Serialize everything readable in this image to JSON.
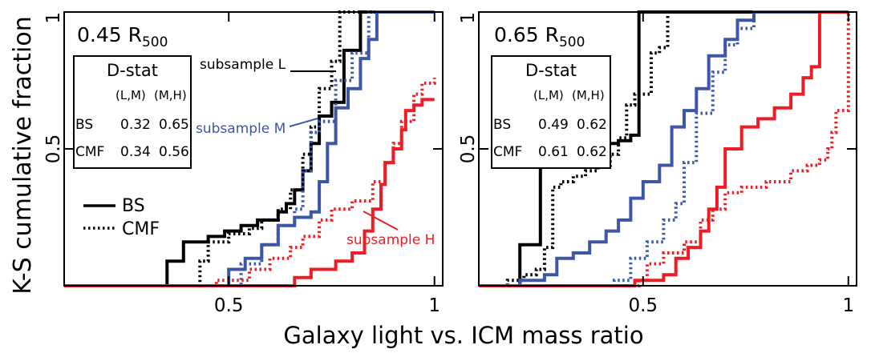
{
  "figure": {
    "ylabel": "K-S cumulative fraction",
    "xlabel": "Galaxy light vs. ICM mass ratio",
    "legend": {
      "bs_label": "BS",
      "cmf_label": "CMF"
    }
  },
  "chart_data": [
    {
      "type": "line",
      "title": "0.45 R",
      "title_sub": "500",
      "xlim": [
        0.1,
        1.02
      ],
      "ylim": [
        0,
        1
      ],
      "xticks": [
        {
          "v": 0.5,
          "label": "0.5"
        },
        {
          "v": 1.0,
          "label": "1"
        }
      ],
      "yticks": [
        {
          "v": 0.5,
          "label": "0.5"
        },
        {
          "v": 1.0,
          "label": "1"
        }
      ],
      "table": {
        "title": "D-stat",
        "header": [
          "(L,M)",
          "(M,H)"
        ],
        "rows": [
          {
            "label": "BS",
            "values": [
              "0.32",
              "0.65"
            ]
          },
          {
            "label": "CMF",
            "values": [
              "0.34",
              "0.56"
            ]
          }
        ]
      },
      "annotations": [
        {
          "text": "subsample L",
          "color": "#000000"
        },
        {
          "text": "subsample M",
          "color": "#3d56a6"
        },
        {
          "text": "subsample H",
          "color": "#ee1c24"
        }
      ],
      "series": [
        {
          "subsample": "L",
          "method": "BS",
          "color": "#000000",
          "dashed": false,
          "x": [
            0.1,
            0.35,
            0.39,
            0.45,
            0.49,
            0.53,
            0.57,
            0.62,
            0.64,
            0.66,
            0.68,
            0.7,
            0.72,
            0.75,
            0.78,
            0.82,
            1.0
          ],
          "y": [
            0,
            0.09,
            0.16,
            0.18,
            0.2,
            0.22,
            0.24,
            0.27,
            0.3,
            0.35,
            0.42,
            0.52,
            0.62,
            0.67,
            0.86,
            1.0,
            1.0
          ]
        },
        {
          "subsample": "L",
          "method": "CMF",
          "color": "#000000",
          "dashed": true,
          "x": [
            0.1,
            0.43,
            0.45,
            0.5,
            0.55,
            0.58,
            0.62,
            0.65,
            0.68,
            0.7,
            0.72,
            0.75,
            0.77,
            1.0
          ],
          "y": [
            0,
            0.09,
            0.16,
            0.19,
            0.21,
            0.24,
            0.28,
            0.35,
            0.48,
            0.58,
            0.72,
            0.82,
            1.0,
            1.0
          ]
        },
        {
          "subsample": "M",
          "method": "BS",
          "color": "#3d56a6",
          "dashed": false,
          "x": [
            0.1,
            0.5,
            0.54,
            0.58,
            0.62,
            0.66,
            0.7,
            0.72,
            0.74,
            0.76,
            0.79,
            0.82,
            0.84,
            0.86,
            0.88,
            1.0
          ],
          "y": [
            0,
            0.06,
            0.1,
            0.15,
            0.22,
            0.25,
            0.27,
            0.38,
            0.52,
            0.65,
            0.72,
            0.83,
            0.9,
            1.0,
            1.0,
            1.0
          ]
        },
        {
          "subsample": "M",
          "method": "CMF",
          "color": "#3d56a6",
          "dashed": true,
          "x": [
            0.1,
            0.53,
            0.58,
            0.62,
            0.66,
            0.68,
            0.7,
            0.72,
            0.76,
            0.8,
            0.84,
            1.0
          ],
          "y": [
            0,
            0.08,
            0.15,
            0.22,
            0.28,
            0.42,
            0.56,
            0.6,
            0.75,
            0.85,
            1.0,
            1.0
          ]
        },
        {
          "subsample": "H",
          "method": "BS",
          "color": "#ee1c24",
          "dashed": false,
          "x": [
            0.1,
            0.66,
            0.7,
            0.76,
            0.8,
            0.83,
            0.85,
            0.87,
            0.88,
            0.9,
            0.92,
            0.93,
            0.95,
            0.97,
            1.0
          ],
          "y": [
            0,
            0.03,
            0.06,
            0.09,
            0.12,
            0.2,
            0.28,
            0.37,
            0.45,
            0.5,
            0.57,
            0.64,
            0.66,
            0.68,
            0.68
          ]
        },
        {
          "subsample": "H",
          "method": "CMF",
          "color": "#ee1c24",
          "dashed": true,
          "x": [
            0.1,
            0.47,
            0.55,
            0.6,
            0.65,
            0.68,
            0.72,
            0.75,
            0.8,
            0.85,
            0.88,
            0.9,
            0.92,
            0.95,
            0.97,
            1.0
          ],
          "y": [
            0,
            0.02,
            0.06,
            0.1,
            0.14,
            0.18,
            0.24,
            0.28,
            0.31,
            0.38,
            0.45,
            0.52,
            0.6,
            0.7,
            0.74,
            0.76
          ]
        }
      ]
    },
    {
      "type": "line",
      "title": "0.65 R",
      "title_sub": "500",
      "xlim": [
        0.1,
        1.02
      ],
      "ylim": [
        0,
        1
      ],
      "xticks": [
        {
          "v": 0.5,
          "label": "0.5"
        },
        {
          "v": 1.0,
          "label": "1"
        }
      ],
      "yticks": [
        {
          "v": 0.5,
          "label": "0.5"
        },
        {
          "v": 1.0,
          "label": "1"
        }
      ],
      "table": {
        "title": "D-stat",
        "header": [
          "(L,M)",
          "(M,H)"
        ],
        "rows": [
          {
            "label": "BS",
            "values": [
              "0.49",
              "0.62"
            ]
          },
          {
            "label": "CMF",
            "values": [
              "0.61",
              "0.62"
            ]
          }
        ]
      },
      "annotations": [],
      "series": [
        {
          "subsample": "L",
          "method": "BS",
          "color": "#000000",
          "dashed": false,
          "x": [
            0.1,
            0.2,
            0.25,
            0.28,
            0.32,
            0.35,
            0.38,
            0.41,
            0.44,
            0.47,
            0.49,
            0.52,
            1.0
          ],
          "y": [
            0,
            0.15,
            0.44,
            0.46,
            0.48,
            0.5,
            0.51,
            0.52,
            0.53,
            0.55,
            1.0,
            1.0,
            1.0
          ]
        },
        {
          "subsample": "L",
          "method": "CMF",
          "color": "#000000",
          "dashed": true,
          "x": [
            0.1,
            0.17,
            0.21,
            0.24,
            0.26,
            0.28,
            0.3,
            0.33,
            0.36,
            0.39,
            0.42,
            0.44,
            0.46,
            0.48,
            0.52,
            0.54,
            0.56,
            1.0
          ],
          "y": [
            0,
            0.02,
            0.04,
            0.06,
            0.14,
            0.36,
            0.38,
            0.4,
            0.42,
            0.44,
            0.48,
            0.54,
            0.66,
            0.7,
            0.85,
            0.87,
            1.0,
            1.0
          ]
        },
        {
          "subsample": "M",
          "method": "BS",
          "color": "#3d56a6",
          "dashed": false,
          "x": [
            0.1,
            0.2,
            0.26,
            0.29,
            0.33,
            0.37,
            0.41,
            0.44,
            0.47,
            0.5,
            0.54,
            0.57,
            0.6,
            0.63,
            0.66,
            0.7,
            0.73,
            0.77,
            1.0
          ],
          "y": [
            0,
            0.02,
            0.04,
            0.1,
            0.12,
            0.16,
            0.2,
            0.24,
            0.32,
            0.38,
            0.44,
            0.58,
            0.64,
            0.72,
            0.84,
            0.9,
            0.97,
            1.0,
            1.0
          ]
        },
        {
          "subsample": "M",
          "method": "CMF",
          "color": "#3d56a6",
          "dashed": true,
          "x": [
            0.1,
            0.43,
            0.47,
            0.51,
            0.55,
            0.58,
            0.6,
            0.63,
            0.67,
            0.7,
            0.73,
            0.77,
            1.0
          ],
          "y": [
            0,
            0.02,
            0.1,
            0.16,
            0.24,
            0.3,
            0.45,
            0.63,
            0.78,
            0.88,
            0.94,
            1.0,
            1.0
          ]
        },
        {
          "subsample": "H",
          "method": "BS",
          "color": "#ee1c24",
          "dashed": false,
          "x": [
            0.1,
            0.48,
            0.55,
            0.58,
            0.61,
            0.64,
            0.66,
            0.68,
            0.7,
            0.74,
            0.78,
            0.82,
            0.86,
            0.89,
            0.91,
            0.93,
            1.0
          ],
          "y": [
            0,
            0.02,
            0.04,
            0.1,
            0.14,
            0.2,
            0.28,
            0.36,
            0.5,
            0.58,
            0.61,
            0.65,
            0.7,
            0.76,
            0.8,
            1.0,
            1.0
          ]
        },
        {
          "subsample": "H",
          "method": "CMF",
          "color": "#ee1c24",
          "dashed": true,
          "x": [
            0.1,
            0.49,
            0.51,
            0.55,
            0.6,
            0.64,
            0.67,
            0.7,
            0.74,
            0.8,
            0.86,
            0.9,
            0.93,
            0.95,
            0.96,
            0.97,
            1.0
          ],
          "y": [
            0,
            0.02,
            0.08,
            0.12,
            0.16,
            0.24,
            0.28,
            0.34,
            0.36,
            0.38,
            0.42,
            0.44,
            0.46,
            0.5,
            0.56,
            0.64,
            1.0
          ]
        }
      ]
    }
  ]
}
